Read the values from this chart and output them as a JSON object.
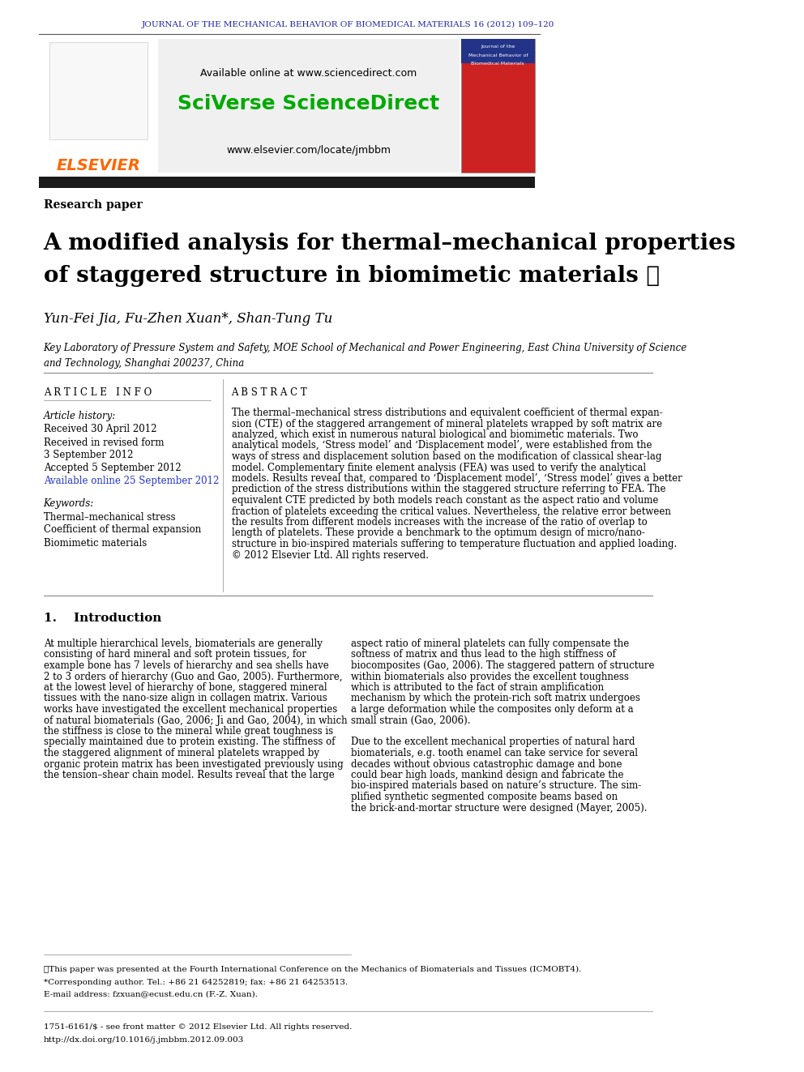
{
  "journal_header": "JOURNAL OF THE MECHANICAL BEHAVIOR OF BIOMEDICAL MATERIALS 16 (2012) 109–120",
  "journal_header_color": "#2222aa",
  "available_online": "Available online at www.sciencedirect.com",
  "sciverse_text": "SciVerse ScienceDirect",
  "sciverse_color": "#00aa00",
  "elsevier_url": "www.elsevier.com/locate/jmbbm",
  "elsevier_text": "ELSEVIER",
  "elsevier_color": "#ff6600",
  "article_type": "Research paper",
  "title_line1": "A modified analysis for thermal–mechanical properties",
  "title_line2": "of staggered structure in biomimetic materials ☆",
  "authors": "Yun-Fei Jia, Fu-Zhen Xuan*, Shan-Tung Tu",
  "affiliation": "Key Laboratory of Pressure System and Safety, MOE School of Mechanical and Power Engineering, East China University of Science\nand Technology, Shanghai 200237, China",
  "article_info_header": "A R T I C L E   I N F O",
  "abstract_header": "A B S T R A C T",
  "article_history_label": "Article history:",
  "received_label": "Received 30 April 2012",
  "received_revised": "Received in revised form",
  "received_revised_date": "3 September 2012",
  "accepted": "Accepted 5 September 2012",
  "available_online2": "Available online 25 September 2012",
  "available_online2_color": "#2233cc",
  "keywords_label": "Keywords:",
  "keyword1": "Thermal–mechanical stress",
  "keyword2": "Coefficient of thermal expansion",
  "keyword3": "Biomimetic materials",
  "abstract_text": "The thermal–mechanical stress distributions and equivalent coefficient of thermal expan-\nsion (CTE) of the staggered arrangement of mineral platelets wrapped by soft matrix are\nanalyzed, which exist in numerous natural biological and biomimetic materials. Two\nanalytical models, ‘Stress model’ and ‘Displacement model’, were established from the\nways of stress and displacement solution based on the modification of classical shear-lag\nmodel. Complementary finite element analysis (FEA) was used to verify the analytical\nmodels. Results reveal that, compared to ‘Displacement model’, ‘Stress model’ gives a better\nprediction of the stress distributions within the staggered structure referring to FEA. The\nequivalent CTE predicted by both models reach constant as the aspect ratio and volume\nfraction of platelets exceeding the critical values. Nevertheless, the relative error between\nthe results from different models increases with the increase of the ratio of overlap to\nlength of platelets. These provide a benchmark to the optimum design of micro/nano-\nstructure in bio-inspired materials suffering to temperature fluctuation and applied loading.\n© 2012 Elsevier Ltd. All rights reserved.",
  "intro_header": "1.    Introduction",
  "intro_text_left": "At multiple hierarchical levels, biomaterials are generally\nconsisting of hard mineral and soft protein tissues, for\nexample bone has 7 levels of hierarchy and sea shells have\n2 to 3 orders of hierarchy (Guo and Gao, 2005). Furthermore,\nat the lowest level of hierarchy of bone, staggered mineral\ntissues with the nano-size align in collagen matrix. Various\nworks have investigated the excellent mechanical properties\nof natural biomaterials (Gao, 2006; Ji and Gao, 2004), in which\nthe stiffness is close to the mineral while great toughness is\nspecially maintained due to protein existing. The stiffness of\nthe staggered alignment of mineral platelets wrapped by\norganic protein matrix has been investigated previously using\nthe tension–shear chain model. Results reveal that the large",
  "intro_text_right": "aspect ratio of mineral platelets can fully compensate the\nsoftness of matrix and thus lead to the high stiffness of\nbiocomposites (Gao, 2006). The staggered pattern of structure\nwithin biomaterials also provides the excellent toughness\nwhich is attributed to the fact of strain amplification\nmechanism by which the protein-rich soft matrix undergoes\na large deformation while the composites only deform at a\nsmall strain (Gao, 2006).\n\nDue to the excellent mechanical properties of natural hard\nbiomaterials, e.g. tooth enamel can take service for several\ndecades without obvious catastrophic damage and bone\ncould bear high loads, mankind design and fabricate the\nbio-inspired materials based on nature’s structure. The sim-\nplified synthetic segmented composite beams based on\nthe brick-and-mortar structure were designed (Mayer, 2005).",
  "footnote_star": "☆This paper was presented at the Fourth International Conference on the Mechanics of Biomaterials and Tissues (ICMOBT4).",
  "footnote_corresponding": "*Corresponding author. Tel.: +86 21 64252819; fax: +86 21 64253513.",
  "footnote_email": "E-mail address: fzxuan@ecust.edu.cn (F.-Z. Xuan).",
  "footer_issn": "1751-6161/$ - see front matter © 2012 Elsevier Ltd. All rights reserved.",
  "footer_doi": "http://dx.doi.org/10.1016/j.jmbbm.2012.09.003",
  "bg_color": "#ffffff",
  "text_color": "#000000"
}
